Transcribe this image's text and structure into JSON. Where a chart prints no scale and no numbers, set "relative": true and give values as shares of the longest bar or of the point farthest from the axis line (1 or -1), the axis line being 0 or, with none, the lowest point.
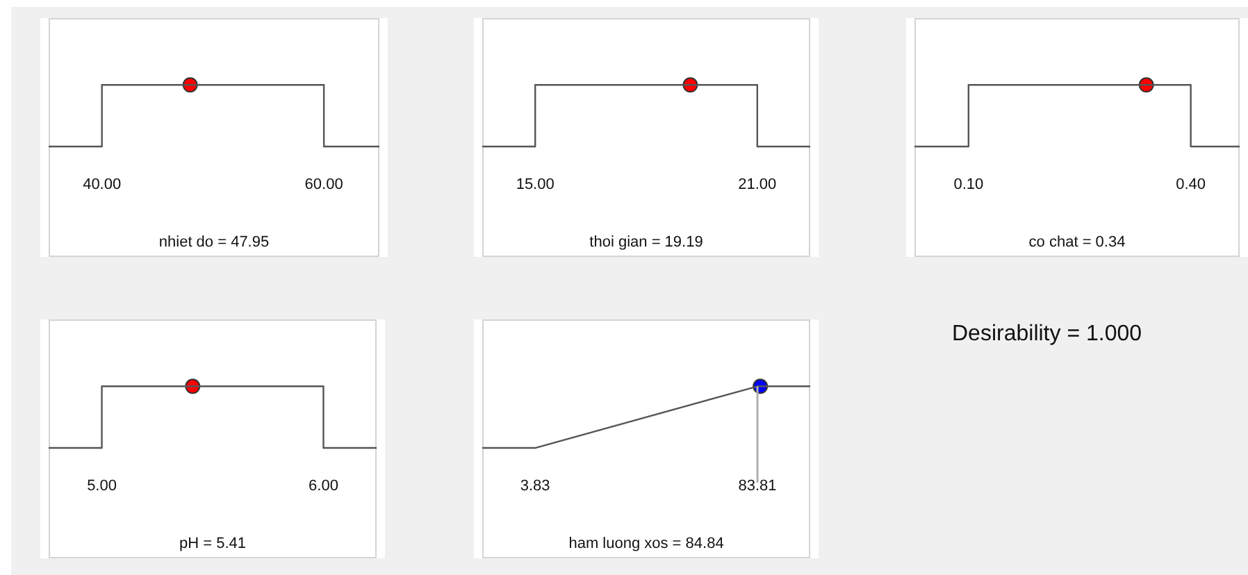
{
  "chart_data": [
    {
      "type": "line",
      "relative": true,
      "xlabel": "nhiet do = 47.95",
      "xlim": [
        35.2,
        65
      ],
      "xticks": [
        {
          "value": 40,
          "label": "40.00"
        },
        {
          "value": 60,
          "label": "60.00"
        }
      ],
      "series": [
        {
          "x": [
            35.2,
            40,
            40,
            60,
            60,
            65
          ],
          "values": [
            0,
            0,
            1,
            1,
            0,
            0
          ],
          "color": "#555555",
          "marker": "none"
        },
        {
          "type": "scatter",
          "x": [
            47.95
          ],
          "values": [
            1
          ],
          "color": "#ff0000",
          "marker": "circle"
        }
      ]
    },
    {
      "type": "line",
      "relative": true,
      "xlabel": "thoi gian = 19.19",
      "xlim": [
        13.57,
        22.43
      ],
      "xticks": [
        {
          "value": 15,
          "label": "15.00"
        },
        {
          "value": 21,
          "label": "21.00"
        }
      ],
      "series": [
        {
          "x": [
            13.57,
            15,
            15,
            21,
            21,
            22.43
          ],
          "values": [
            0,
            0,
            1,
            1,
            0,
            0
          ],
          "color": "#555555",
          "marker": "none"
        },
        {
          "type": "scatter",
          "x": [
            19.19
          ],
          "values": [
            1
          ],
          "color": "#ff0000",
          "marker": "circle"
        }
      ]
    },
    {
      "type": "line",
      "relative": true,
      "xlabel": "co chat = 0.34",
      "xlim": [
        0.027,
        0.466
      ],
      "xticks": [
        {
          "value": 0.1,
          "label": "0.10"
        },
        {
          "value": 0.4,
          "label": "0.40"
        }
      ],
      "series": [
        {
          "x": [
            0.027,
            0.1,
            0.1,
            0.4,
            0.4,
            0.466
          ],
          "values": [
            0,
            0,
            1,
            1,
            0,
            0
          ],
          "color": "#555555",
          "marker": "none"
        },
        {
          "type": "scatter",
          "x": [
            0.34
          ],
          "values": [
            1
          ],
          "color": "#ff0000",
          "marker": "circle"
        }
      ]
    },
    {
      "type": "line",
      "relative": true,
      "xlabel": "pH = 5.41",
      "xlim": [
        4.76,
        6.24
      ],
      "xticks": [
        {
          "value": 5,
          "label": "5.00"
        },
        {
          "value": 6,
          "label": "6.00"
        }
      ],
      "series": [
        {
          "x": [
            4.76,
            5,
            5,
            6,
            6,
            6.24
          ],
          "values": [
            0,
            0,
            1,
            1,
            0,
            0
          ],
          "color": "#555555",
          "marker": "none"
        },
        {
          "type": "scatter",
          "x": [
            5.41
          ],
          "values": [
            1
          ],
          "color": "#ff0000",
          "marker": "circle"
        }
      ]
    },
    {
      "type": "line",
      "relative": true,
      "xlabel": "ham luong xos = 84.84",
      "xlim": [
        -15.2,
        102.8
      ],
      "xticks": [
        {
          "value": 3.83,
          "label": "3.83"
        },
        {
          "value": 83.81,
          "label": "83.81"
        }
      ],
      "ref_lines": [
        {
          "axis": "x",
          "value": 83.81,
          "color": "#b0b0b0"
        }
      ],
      "series": [
        {
          "x": [
            -15.2,
            3.83,
            83.81,
            102.8
          ],
          "values": [
            0,
            0,
            1,
            1
          ],
          "color": "#555555",
          "marker": "none"
        },
        {
          "type": "scatter",
          "x": [
            84.84
          ],
          "values": [
            1
          ],
          "color": "#0000ff",
          "marker": "circle"
        }
      ]
    },
    {
      "type": "other",
      "title": "Desirability = 1.000"
    }
  ]
}
